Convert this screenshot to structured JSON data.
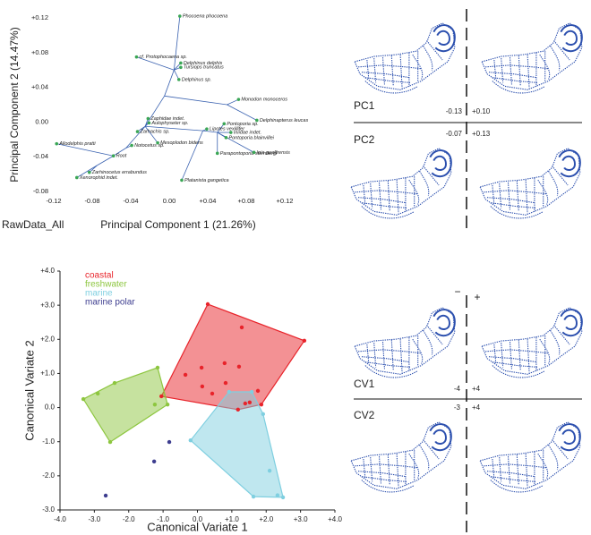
{
  "chart_data": [
    {
      "type": "phylomorphospace",
      "title_note": "RawData_All",
      "xlabel": "Principal Component 1 (21.26%)",
      "ylabel": "Principal Component 2 (14.47%)",
      "xlim": [
        -0.12,
        0.12
      ],
      "ylim": [
        -0.08,
        0.12
      ],
      "xticks": [
        -0.12,
        -0.08,
        -0.04,
        {
          "value": 0,
          "label": "0.00"
        },
        {
          "value": 0.04,
          "label": "+0.04"
        },
        {
          "value": 0.08,
          "label": "+0.08"
        },
        {
          "value": 0.12,
          "label": "+0.12"
        }
      ],
      "yticks": [
        -0.08,
        -0.04,
        {
          "value": 0,
          "label": "0.00"
        },
        {
          "value": 0.04,
          "label": "+0.04"
        },
        {
          "value": 0.08,
          "label": "+0.08"
        },
        {
          "value": 0.12,
          "label": "+0.12"
        }
      ],
      "point_color": "#3aa655",
      "edge_color": "#3a62b0",
      "labels": [
        "Root",
        null,
        null,
        "Allodelphis pratti",
        "Xenorophid indet.",
        "Zarhinocetus errabundus",
        "Notocetus sp.",
        null,
        "Zaphidae indet.",
        "Aulophyseter sp.",
        "Zarhachis sp.",
        "Mesoplodon bidens",
        null,
        null,
        "Phocoena phocoena",
        "cf. Protophocaena sp.",
        "Delphinus delphis",
        "Tursiops truncatus",
        "Delphinus sp.",
        null,
        "Monodon monoceros",
        "Delphinapterus leucas",
        null,
        "Lipotes vexillifer",
        "Platanista gangetica",
        null,
        "Pontoporia sp.",
        "Iniidae indet.",
        "Pontoporia blainvillei",
        "Parapontoporia sternbergi",
        "Inia geoffrensis"
      ],
      "x": [
        -0.058,
        -0.045,
        -0.075,
        -0.117,
        -0.096,
        -0.083,
        -0.039,
        -0.025,
        -0.022,
        -0.021,
        -0.033,
        -0.012,
        -0.005,
        0.005,
        0.011,
        -0.034,
        0.012,
        0.012,
        0.01,
        0.06,
        0.072,
        0.091,
        0.035,
        0.039,
        0.013,
        0.05,
        0.057,
        0.064,
        0.059,
        0.05,
        0.088
      ],
      "y": [
        -0.039,
        -0.03,
        -0.05,
        -0.025,
        -0.064,
        -0.058,
        -0.027,
        -0.005,
        0.004,
        -0.001,
        -0.011,
        -0.024,
        0.03,
        0.06,
        0.122,
        0.075,
        0.068,
        0.063,
        0.049,
        0.02,
        0.026,
        0.002,
        -0.01,
        -0.008,
        -0.067,
        -0.012,
        -0.002,
        -0.012,
        -0.018,
        -0.036,
        -0.035
      ],
      "parent": [
        null,
        0,
        0,
        0,
        2,
        2,
        1,
        1,
        7,
        7,
        7,
        7,
        7,
        12,
        13,
        13,
        13,
        13,
        13,
        12,
        19,
        19,
        7,
        22,
        22,
        22,
        25,
        25,
        25,
        25,
        25
      ]
    },
    {
      "type": "scatter",
      "xlabel": "Canonical Variate 1",
      "ylabel": "Canonical Variate 2",
      "xlim": [
        -4,
        4
      ],
      "ylim": [
        -3,
        4
      ],
      "xticks": [
        {
          "value": -4,
          "label": "-4.0"
        },
        {
          "value": -3,
          "label": "-3.0"
        },
        {
          "value": -2,
          "label": "-2.0"
        },
        {
          "value": -1,
          "label": "-1.0"
        },
        {
          "value": 0,
          "label": "0.0"
        },
        {
          "value": 1,
          "label": "+1.0"
        },
        {
          "value": 2,
          "label": "+2.0"
        },
        {
          "value": 3,
          "label": "+3.0"
        },
        {
          "value": 4,
          "label": "+4.0"
        }
      ],
      "yticks": [
        {
          "value": -3,
          "label": "-3.0"
        },
        {
          "value": -2,
          "label": "-2.0"
        },
        {
          "value": -1,
          "label": "-1.0"
        },
        {
          "value": 0,
          "label": "0.0"
        },
        {
          "value": 1,
          "label": "+1.0"
        },
        {
          "value": 2,
          "label": "+2.0"
        },
        {
          "value": 3,
          "label": "+3.0"
        },
        {
          "value": 4,
          "label": "+4.0"
        }
      ],
      "legend": "top-left",
      "series": [
        {
          "name": "coastal",
          "color": "#e8232a",
          "hull": true,
          "x": [
            0.3,
            1.29,
            3.11,
            -0.35,
            0.12,
            0.79,
            1.21,
            0.82,
            1.76,
            0.43,
            0.14,
            -1.05,
            1.52,
            1.18,
            1.39,
            1.86
          ],
          "y": [
            3.03,
            2.35,
            1.96,
            0.96,
            1.17,
            1.3,
            1.2,
            0.72,
            0.49,
            0.41,
            0.62,
            0.33,
            0.15,
            -0.06,
            0.12,
            0.09
          ]
        },
        {
          "name": "freshwater",
          "color": "#8dc63f",
          "hull": true,
          "x": [
            -1.16,
            -2.41,
            -2.9,
            -3.32,
            -1.24,
            -0.87,
            -2.54
          ],
          "y": [
            1.17,
            0.72,
            0.41,
            0.25,
            0.09,
            0.09,
            -1.01
          ]
        },
        {
          "name": "marine",
          "color": "#7fcfe0",
          "hull": true,
          "x": [
            0.92,
            1.58,
            1.91,
            2.1,
            2.49,
            2.33,
            1.63,
            -0.2
          ],
          "y": [
            0.46,
            0.46,
            -0.19,
            -1.85,
            -2.63,
            -2.57,
            -2.61,
            -0.96
          ]
        },
        {
          "name": "marine polar",
          "color": "#3d3d8f",
          "hull": false,
          "x": [
            -0.82,
            -1.26,
            -2.67
          ],
          "y": [
            -1.01,
            -1.58,
            -2.58
          ]
        }
      ]
    }
  ],
  "shape_panels": {
    "pc": {
      "axis1": "PC1",
      "axis1_neg": "-0.13",
      "axis1_pos": "+0.10",
      "axis2": "PC2",
      "axis2_neg": "-0.07",
      "axis2_pos": "+0.13"
    },
    "cv": {
      "minus": "−",
      "plus": "+",
      "axis1": "CV1",
      "axis1_neg": "-4",
      "axis1_pos": "+4",
      "axis2": "CV2",
      "axis2_neg": "-3",
      "axis2_pos": "+4"
    }
  }
}
